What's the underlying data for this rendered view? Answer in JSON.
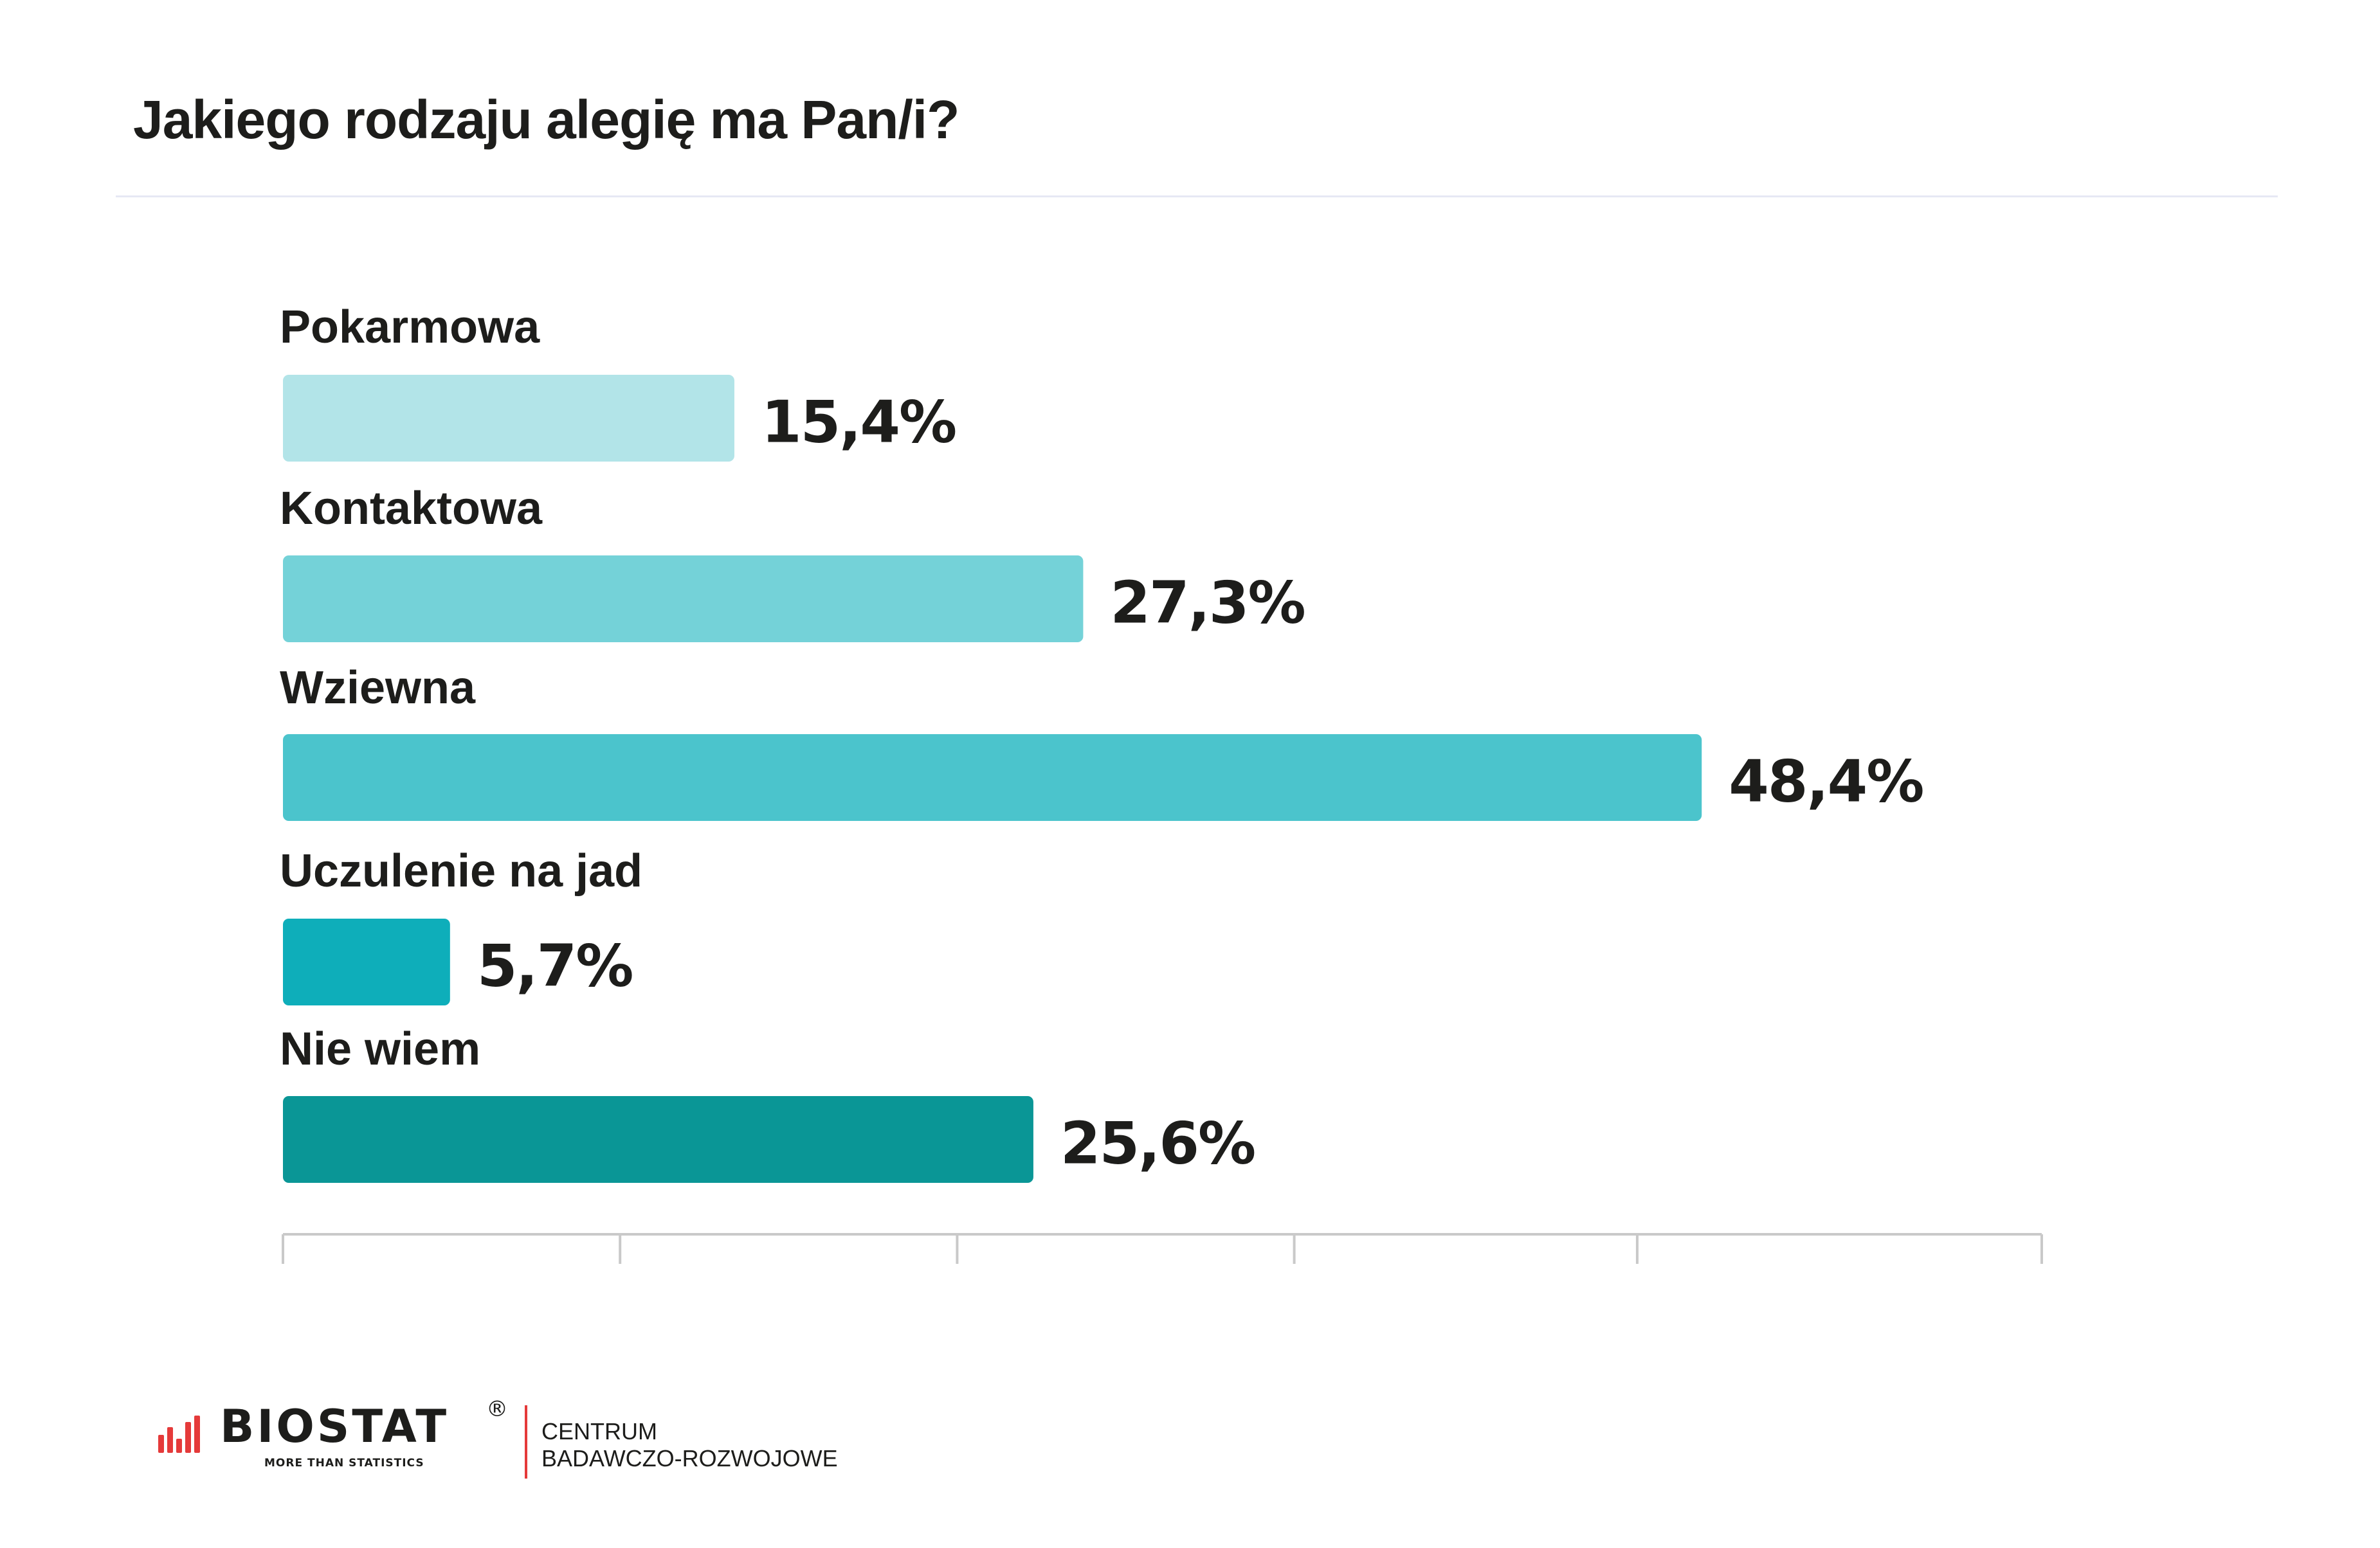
{
  "title": "Jakiego rodzaju alegię ma Pan/i?",
  "colors": {
    "bars": [
      "#b2e4e8",
      "#74d2d8",
      "#4bc4cc",
      "#0eaeba",
      "#0a9696"
    ],
    "axis": "#c9c9c9",
    "text": "#1d1d1b",
    "brand_red": "#e53a3a"
  },
  "chart_data": {
    "type": "bar",
    "orientation": "horizontal",
    "categories": [
      "Pokarmowa",
      "Kontaktowa",
      "Wziewna",
      "Uczulenie na jad",
      "Nie wiem"
    ],
    "values": [
      15.4,
      27.3,
      48.4,
      5.7,
      25.6
    ],
    "value_labels": [
      "15,4%",
      "27,3%",
      "48,4%",
      "5,7%",
      "25,6%"
    ],
    "unit": "%",
    "xlim": [
      0,
      60
    ],
    "axis_ticks": [
      0,
      11.5,
      23,
      34.5,
      46.2,
      60
    ],
    "grid": false,
    "legend": "none"
  },
  "footer": {
    "logo_text": "BIOSTAT",
    "logo_registered": "®",
    "logo_tagline": "MORE THAN STATISTICS",
    "org_line1": "CENTRUM",
    "org_line2": "BADAWCZO-ROZWOJOWE",
    "logo_icon": "bar-signal-icon"
  }
}
